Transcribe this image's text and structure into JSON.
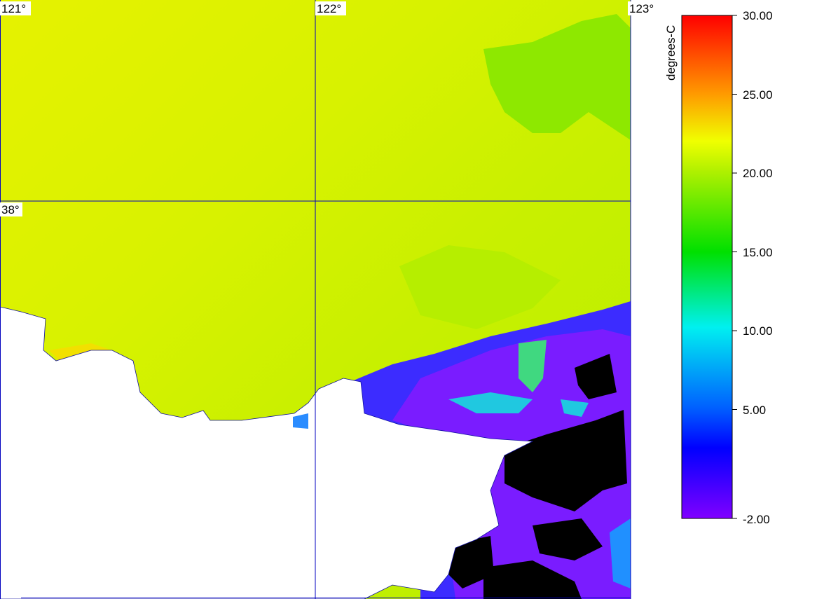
{
  "map": {
    "longitude_labels": [
      "121°",
      "122°",
      "123°"
    ],
    "latitude_labels": [
      "38°"
    ],
    "legend": {
      "unit": "degrees-C",
      "tick_labels": [
        "30.00",
        "25.00",
        "20.00",
        "15.00",
        "10.00",
        "5.00",
        "-2.00"
      ]
    }
  }
}
